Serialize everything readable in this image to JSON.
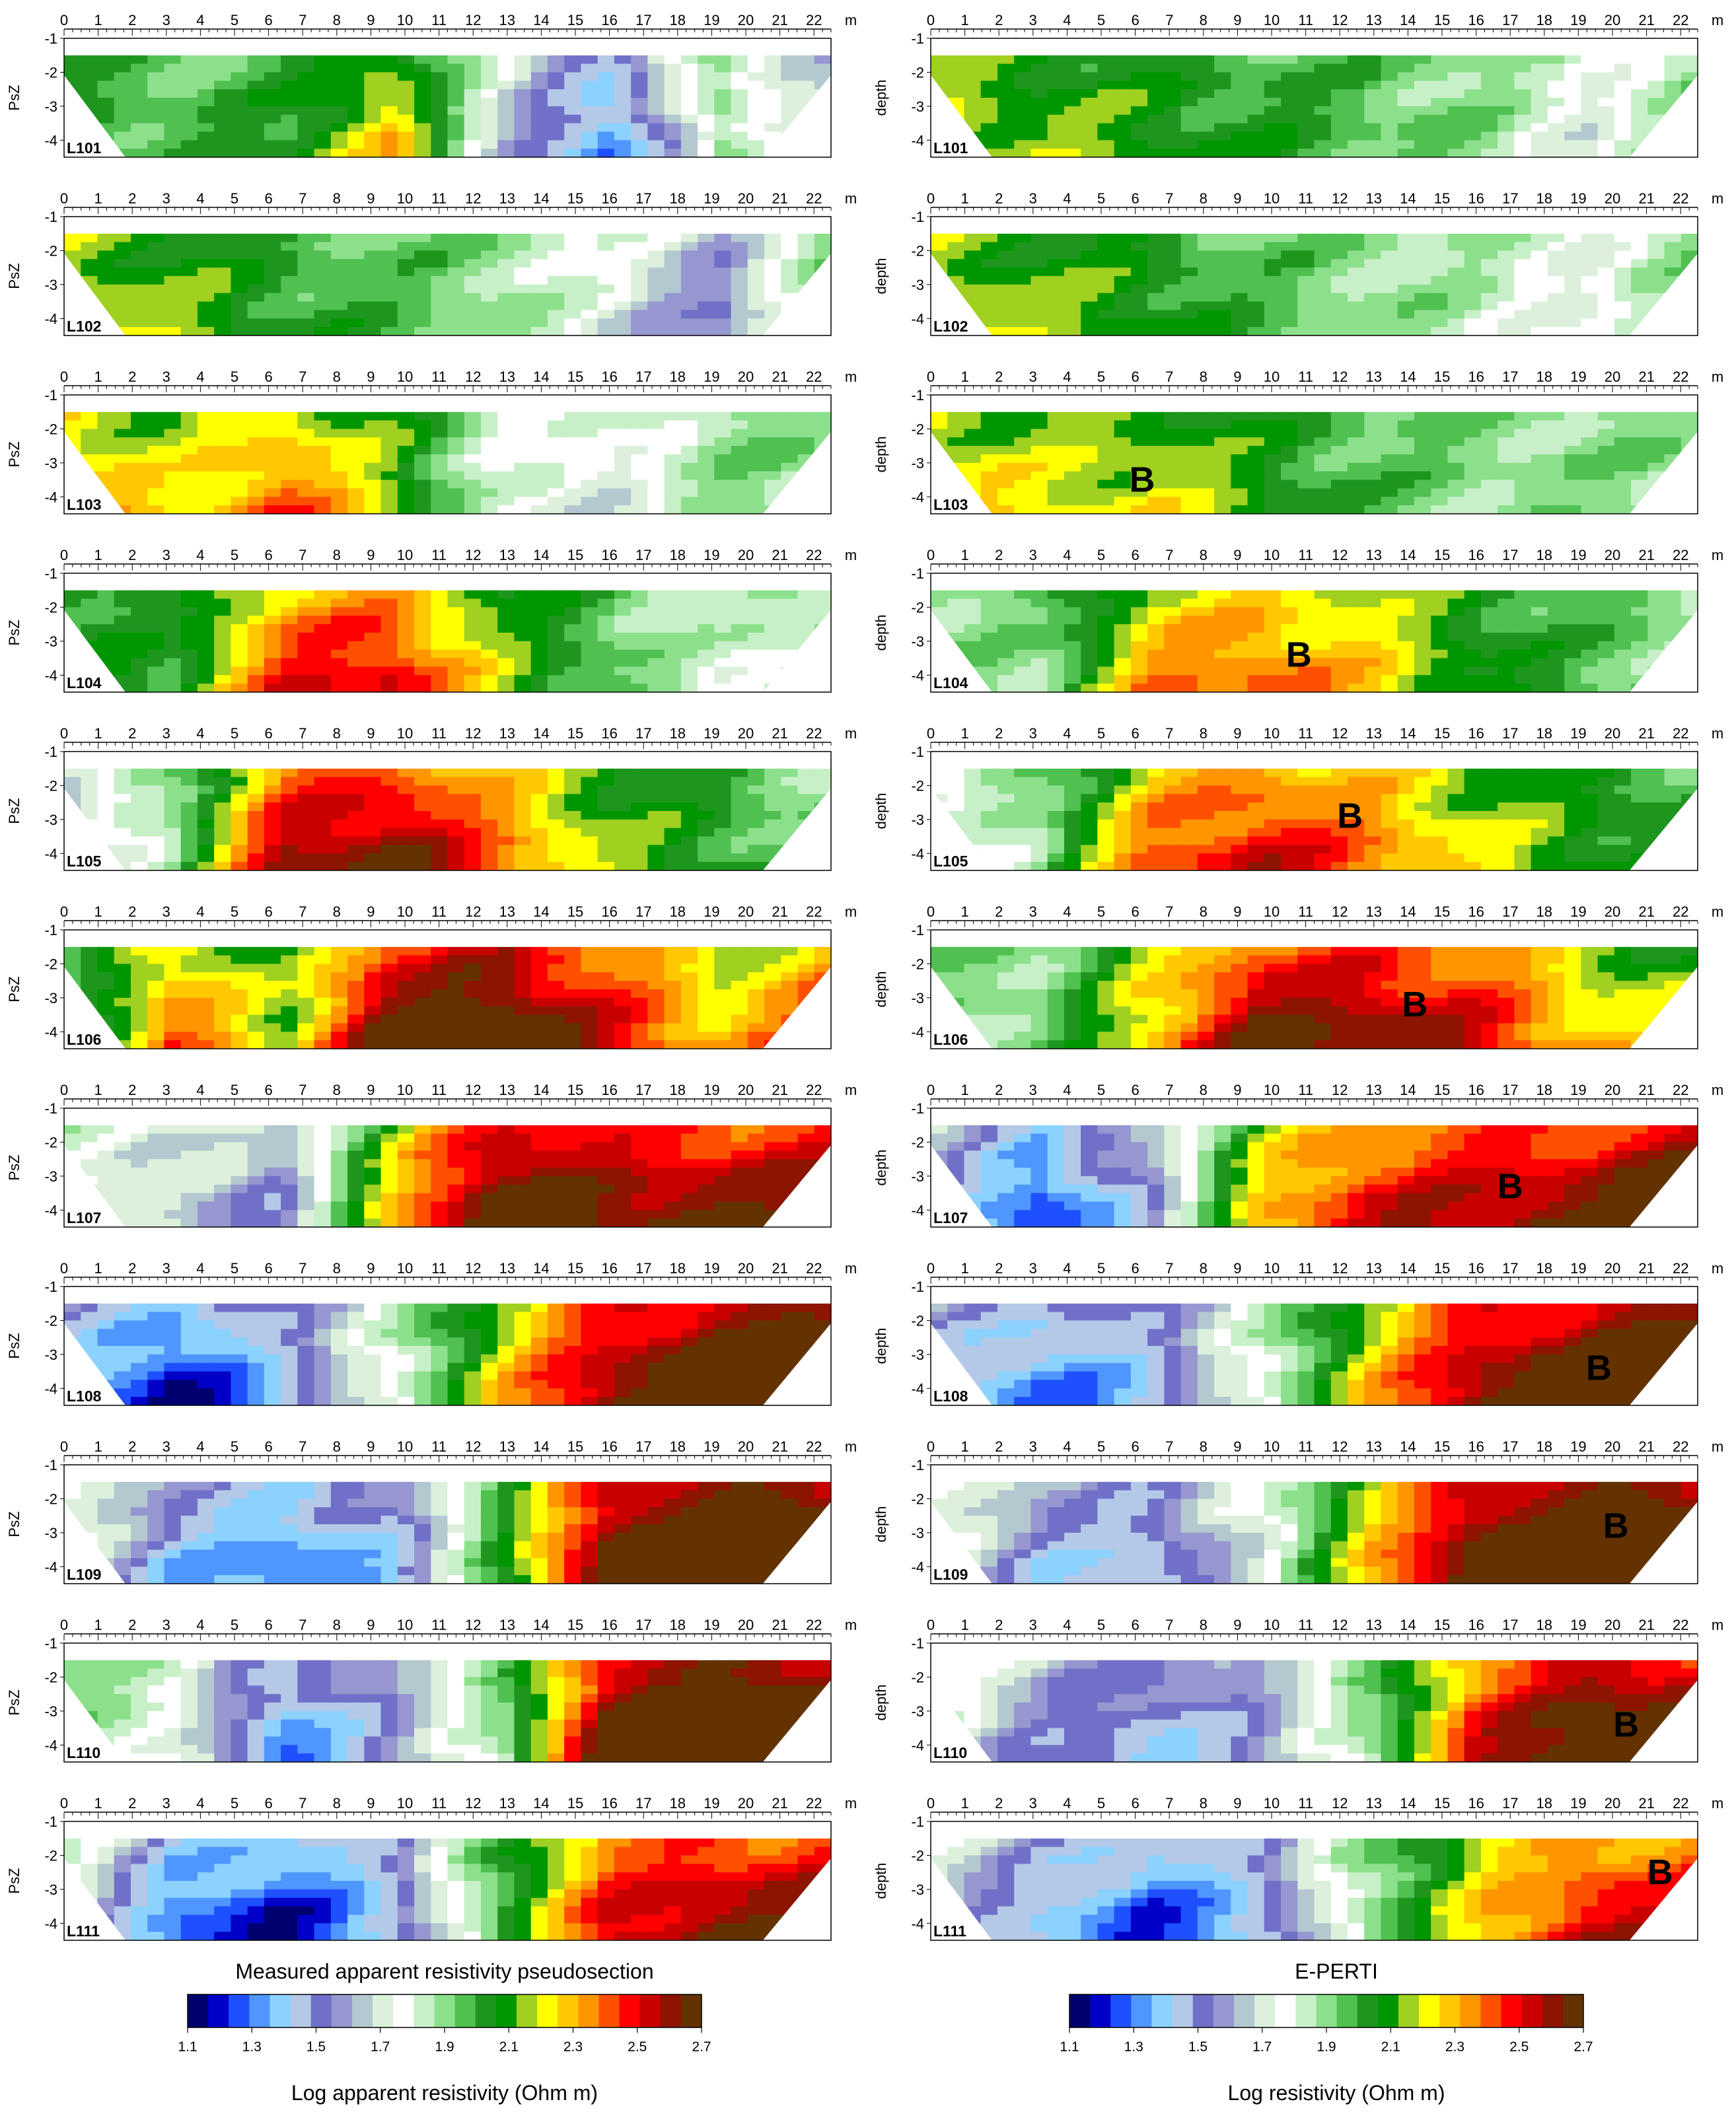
{
  "figure": {
    "panels": {
      "left": {
        "title": "Measured apparent resistivity pseudosection",
        "y_label": "PsZ"
      },
      "right": {
        "title": "E-PERTI",
        "y_label": "depth"
      }
    },
    "x_unit": "m",
    "colorbars": {
      "left": {
        "label": "Log apparent resistivity (Ohm m)"
      },
      "right": {
        "label": "Log resistivity (Ohm m)"
      },
      "ticks": [
        "1.1",
        "1.3",
        "1.5",
        "1.7",
        "1.9",
        "2.1",
        "2.3",
        "2.5",
        "2.7"
      ]
    },
    "annotation_letter": "B"
  },
  "chart_data": {
    "type": "heatmap",
    "x_ticks": [
      0,
      1,
      2,
      3,
      4,
      5,
      6,
      7,
      8,
      9,
      10,
      11,
      12,
      13,
      14,
      15,
      16,
      17,
      18,
      19,
      20,
      21,
      22
    ],
    "y_ticks": [
      -1,
      -2,
      -3,
      -4
    ],
    "xlim": [
      0,
      22.5
    ],
    "ylim": [
      -1,
      -4.5
    ],
    "color_scale": {
      "range": [
        1.1,
        2.7
      ],
      "colors": [
        "#000070",
        "#0000c8",
        "#1e50ff",
        "#5096ff",
        "#8cd2ff",
        "#b4c8e8",
        "#7070c8",
        "#9696d0",
        "#b4c8d0",
        "#dcf0dc",
        "#ffffff",
        "#c8f0c8",
        "#8ce08c",
        "#50c050",
        "#1e961e",
        "#009600",
        "#a0d020",
        "#ffff00",
        "#ffc800",
        "#ff9600",
        "#ff5000",
        "#ff0000",
        "#c80000",
        "#8c1400",
        "#643200"
      ]
    },
    "lines": [
      {
        "name": "L101",
        "left_trend": [
          2.0,
          1.95,
          2.0,
          2.2,
          1.7,
          1.4,
          1.9,
          1.6
        ],
        "right_trend": [
          2.15,
          2.1,
          2.05,
          2.0,
          1.95,
          1.9,
          1.75,
          1.9
        ]
      },
      {
        "name": "L102",
        "left_trend": [
          2.15,
          2.1,
          2.0,
          1.95,
          1.9,
          1.75,
          1.6,
          1.9
        ],
        "right_trend": [
          2.15,
          2.1,
          2.05,
          1.95,
          1.9,
          1.85,
          1.75,
          1.9
        ]
      },
      {
        "name": "L103",
        "left_trend": [
          2.25,
          2.15,
          2.3,
          2.1,
          1.8,
          1.75,
          1.9,
          1.9
        ],
        "right_trend": [
          2.2,
          2.15,
          2.15,
          2.05,
          1.95,
          1.9,
          1.9,
          1.9
        ]
      },
      {
        "name": "L104",
        "left_trend": [
          2.05,
          2.0,
          2.35,
          2.4,
          2.1,
          1.95,
          1.8,
          1.9
        ],
        "right_trend": [
          1.9,
          1.9,
          2.25,
          2.3,
          2.2,
          2.05,
          1.95,
          1.9
        ]
      },
      {
        "name": "L105",
        "left_trend": [
          1.65,
          1.9,
          2.45,
          2.5,
          2.3,
          2.1,
          2.0,
          1.9
        ],
        "right_trend": [
          1.75,
          1.9,
          2.3,
          2.4,
          2.3,
          2.15,
          2.05,
          2.0
        ]
      },
      {
        "name": "L106",
        "left_trend": [
          1.9,
          2.3,
          2.1,
          2.55,
          2.6,
          2.4,
          2.2,
          2.35
        ],
        "right_trend": [
          1.9,
          1.9,
          2.2,
          2.5,
          2.5,
          2.4,
          2.2,
          2.1
        ]
      },
      {
        "name": "L107",
        "left_trend": [
          1.8,
          1.7,
          1.6,
          2.2,
          2.6,
          2.5,
          2.5,
          2.5
        ],
        "right_trend": [
          1.6,
          1.35,
          1.6,
          2.2,
          2.4,
          2.45,
          2.5,
          2.6
        ]
      },
      {
        "name": "L108",
        "left_trend": [
          1.5,
          1.3,
          1.5,
          1.8,
          2.2,
          2.5,
          2.65,
          2.7
        ],
        "right_trend": [
          1.55,
          1.4,
          1.5,
          1.8,
          2.2,
          2.5,
          2.6,
          2.7
        ]
      },
      {
        "name": "L109",
        "left_trend": [
          1.8,
          1.5,
          1.4,
          1.5,
          2.0,
          2.6,
          2.7,
          2.7
        ],
        "right_trend": [
          1.8,
          1.55,
          1.5,
          1.75,
          2.2,
          2.6,
          2.7,
          2.7
        ]
      },
      {
        "name": "L110",
        "left_trend": [
          1.9,
          1.8,
          1.4,
          1.6,
          1.9,
          2.6,
          2.7,
          2.7
        ],
        "right_trend": [
          1.8,
          1.6,
          1.5,
          1.6,
          1.9,
          2.4,
          2.6,
          2.6
        ]
      },
      {
        "name": "L111",
        "left_trend": [
          1.8,
          1.4,
          1.3,
          1.5,
          2.0,
          2.4,
          2.5,
          2.5
        ],
        "right_trend": [
          1.7,
          1.5,
          1.35,
          1.5,
          1.9,
          2.2,
          2.4,
          2.4
        ]
      }
    ]
  }
}
